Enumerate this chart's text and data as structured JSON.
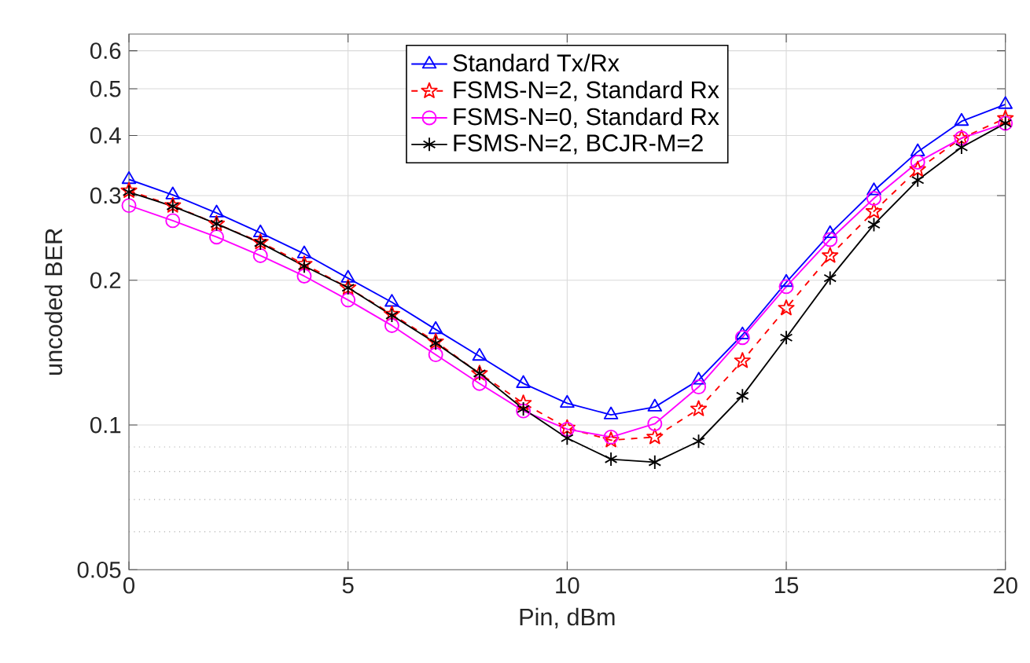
{
  "chart_data": {
    "type": "line",
    "xlabel": "Pin, dBm",
    "ylabel": "uncoded BER",
    "log": "y",
    "grid": true,
    "legend": "top",
    "x": [
      0,
      1,
      2,
      3,
      4,
      5,
      6,
      7,
      8,
      9,
      10,
      11,
      12,
      13,
      14,
      15,
      16,
      17,
      18,
      19,
      20
    ],
    "xlim": [
      0,
      20
    ],
    "xticks": [
      0,
      5,
      10,
      15,
      20
    ],
    "ylim": [
      0.05,
      0.65
    ],
    "yticks": [
      0.05,
      0.1,
      0.2,
      0.3,
      0.4,
      0.5,
      0.6
    ],
    "series": [
      {
        "name": "Standard Tx/Rx",
        "color": "#0000ff",
        "marker": "triangle",
        "line_style": "solid",
        "values": [
          0.324,
          0.301,
          0.276,
          0.251,
          0.227,
          0.202,
          0.18,
          0.158,
          0.139,
          0.122,
          0.111,
          0.105,
          0.109,
          0.124,
          0.154,
          0.198,
          0.25,
          0.307,
          0.37,
          0.428,
          0.464
        ]
      },
      {
        "name": "FSMS-N=2, Standard Rx",
        "color": "#ff0000",
        "marker": "star",
        "line_style": "dashed",
        "values": [
          0.307,
          0.286,
          0.262,
          0.24,
          0.216,
          0.193,
          0.17,
          0.149,
          0.128,
          0.111,
          0.0986,
          0.093,
          0.0944,
          0.108,
          0.136,
          0.175,
          0.225,
          0.278,
          0.34,
          0.395,
          0.434
        ]
      },
      {
        "name": "FSMS-N=0, Standard Rx",
        "color": "#ff00ff",
        "marker": "circle",
        "line_style": "solid",
        "values": [
          0.286,
          0.266,
          0.246,
          0.225,
          0.204,
          0.182,
          0.161,
          0.14,
          0.122,
          0.107,
          0.098,
          0.0944,
          0.1006,
          0.12,
          0.152,
          0.194,
          0.243,
          0.296,
          0.352,
          0.395,
          0.424
        ]
      },
      {
        "name": "FSMS-N=2, BCJR-M=2",
        "color": "#000000",
        "marker": "cross",
        "line_style": "solid",
        "values": [
          0.305,
          0.285,
          0.262,
          0.239,
          0.214,
          0.193,
          0.169,
          0.148,
          0.128,
          0.108,
          0.0939,
          0.0849,
          0.0837,
          0.0925,
          0.115,
          0.152,
          0.202,
          0.261,
          0.323,
          0.378,
          0.424
        ]
      }
    ]
  }
}
